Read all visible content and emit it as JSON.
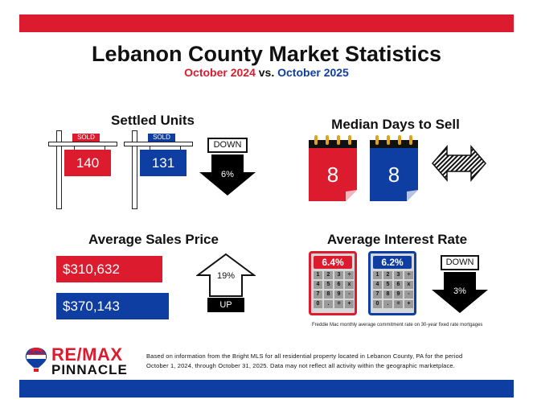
{
  "header": {
    "title": "Lebanon County Market Statistics",
    "period_a": "October 2024",
    "vs": "vs.",
    "period_b": "October 2025"
  },
  "settled_units": {
    "title": "Settled Units",
    "sold_tag": "SOLD",
    "value_a": "140",
    "value_b": "131",
    "direction": "DOWN",
    "change": "6%"
  },
  "median_days": {
    "title": "Median Days to Sell",
    "value_a": "8",
    "value_b": "8"
  },
  "avg_price": {
    "title": "Average Sales Price",
    "value_a": "$310,632",
    "value_b": "$370,143",
    "change": "19%",
    "direction": "UP"
  },
  "interest_rate": {
    "title": "Average Interest Rate",
    "rate_a": "6.4%",
    "rate_b": "6.2%",
    "direction": "DOWN",
    "change": "3%",
    "note": "Freddie Mac monthly average commitment rate on 30-year fixed rate mortgages",
    "keys": [
      "1",
      "2",
      "3",
      "÷",
      "4",
      "5",
      "6",
      "x",
      "7",
      "8",
      "9",
      "-",
      "0",
      ".",
      "=",
      "+"
    ]
  },
  "footer": {
    "logo_small": "RE/MAX",
    "logo_main": "RE/MAX",
    "logo_sub": "PINNACLE",
    "disclaimer_line1": "Based on information from the Bright MLS for all residential property located in Lebanon County, PA for the period",
    "disclaimer_line2": "October 1, 2024, through October 31, 2025.  Data may not reflect all activity within the geographic marketplace."
  },
  "colors": {
    "red": "#dc1c2e",
    "blue": "#0f3ea3",
    "black": "#111111"
  }
}
